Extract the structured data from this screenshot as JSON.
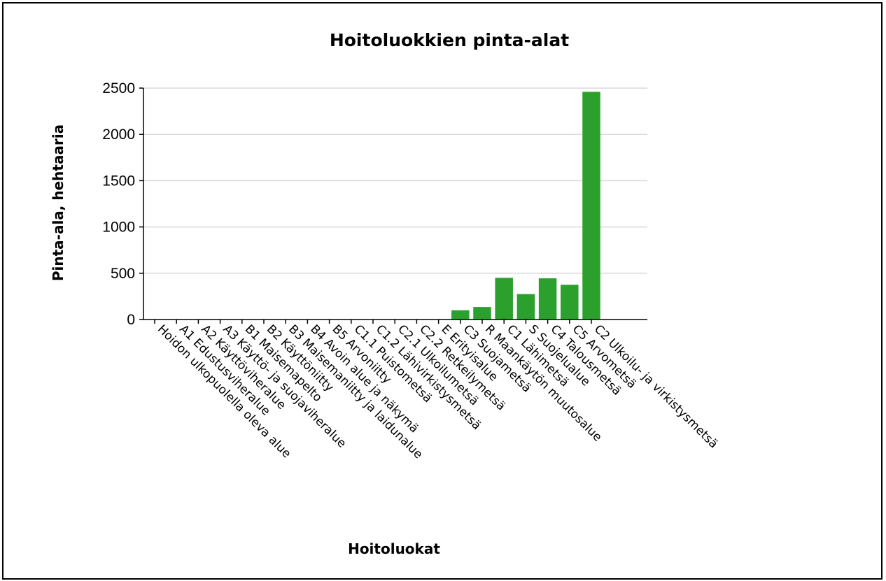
{
  "chart_data": {
    "type": "bar",
    "title": "Hoitoluokkien pinta-alat",
    "xlabel": "Hoitoluokat",
    "ylabel": "Pinta-ala, hehtaaria",
    "ylim": [
      0,
      2500
    ],
    "yticks": [
      0,
      500,
      1000,
      1500,
      2000,
      2500
    ],
    "grid": true,
    "bar_color": "#2ca02c",
    "categories": [
      "Hoidon ulkopuolella oleva alue",
      "A1 Edustusviheralue",
      "A2 Käyttöviheralue",
      "A3 Käyttö- ja suojaviheralue",
      "B1 Maisemapelto",
      "B2 Käyttöniitty",
      "B3 Maisemaniitty ja laidunalue",
      "B4 Avoin alue ja näkymä",
      "B5 Arvoniitty",
      "C1.1 Puistometsä",
      "C1.2 Lähivirkistysmetsä",
      "C2.1 Ulkoilumetsä",
      "C2.2 Retkeilymetsä",
      "E Erityisalue",
      "C3 Suojametsä",
      "R Maankäytön muutosalue",
      "C1 Lähimetsä",
      "S Suojelualue",
      "C4 Talousmetsä",
      "C5 Arvometsä",
      "C2 Ulkoilu- ja virkistysmetsä"
    ],
    "values": [
      0,
      0,
      0,
      0,
      0,
      0,
      0,
      0,
      0,
      0,
      0,
      0,
      0,
      0,
      100,
      135,
      450,
      275,
      445,
      375,
      2460
    ]
  }
}
